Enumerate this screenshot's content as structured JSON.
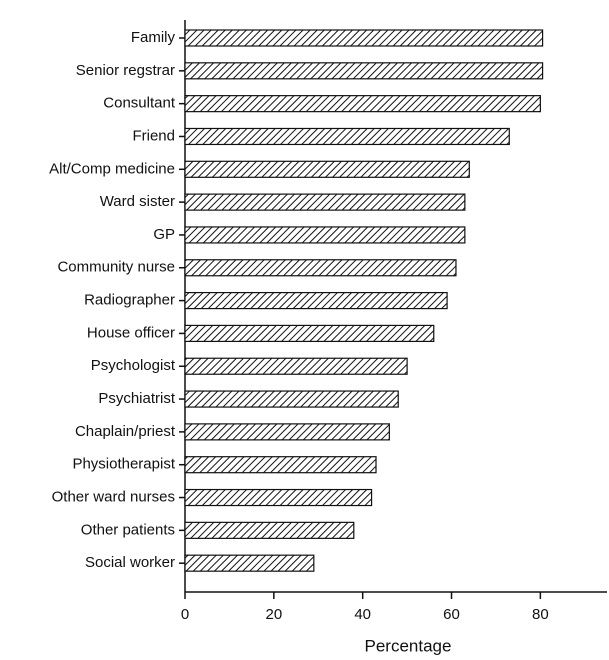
{
  "chart_data": {
    "type": "bar",
    "orientation": "horizontal",
    "x_label": "Percentage",
    "categories": [
      "Family",
      "Senior regstrar",
      "Consultant",
      "Friend",
      "Alt/Comp medicine",
      "Ward sister",
      "GP",
      "Community nurse",
      "Radiographer",
      "House officer",
      "Psychologist",
      "Psychiatrist",
      "Chaplain/priest",
      "Physiotherapist",
      "Other ward nurses",
      "Other patients",
      "Social worker"
    ],
    "values": [
      80.5,
      80.5,
      80,
      73,
      64,
      63,
      63,
      61,
      59,
      56,
      50,
      48,
      46,
      43,
      42,
      38,
      29
    ],
    "color": "#111111",
    "pattern": "hatch",
    "xlim": [
      0,
      95
    ],
    "xticks": [
      0,
      20,
      40,
      60,
      80
    ],
    "grid": false
  }
}
